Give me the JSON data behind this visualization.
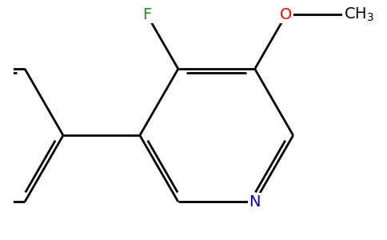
{
  "bg_color": "#ffffff",
  "bond_color": "#000000",
  "atom_colors": {
    "F": "#228B22",
    "O": "#ff0000",
    "N": "#0000cd",
    "C": "#000000"
  },
  "bond_width": 2.0,
  "dbo": 0.055,
  "figsize": [
    4.84,
    3.0
  ],
  "dpi": 100
}
